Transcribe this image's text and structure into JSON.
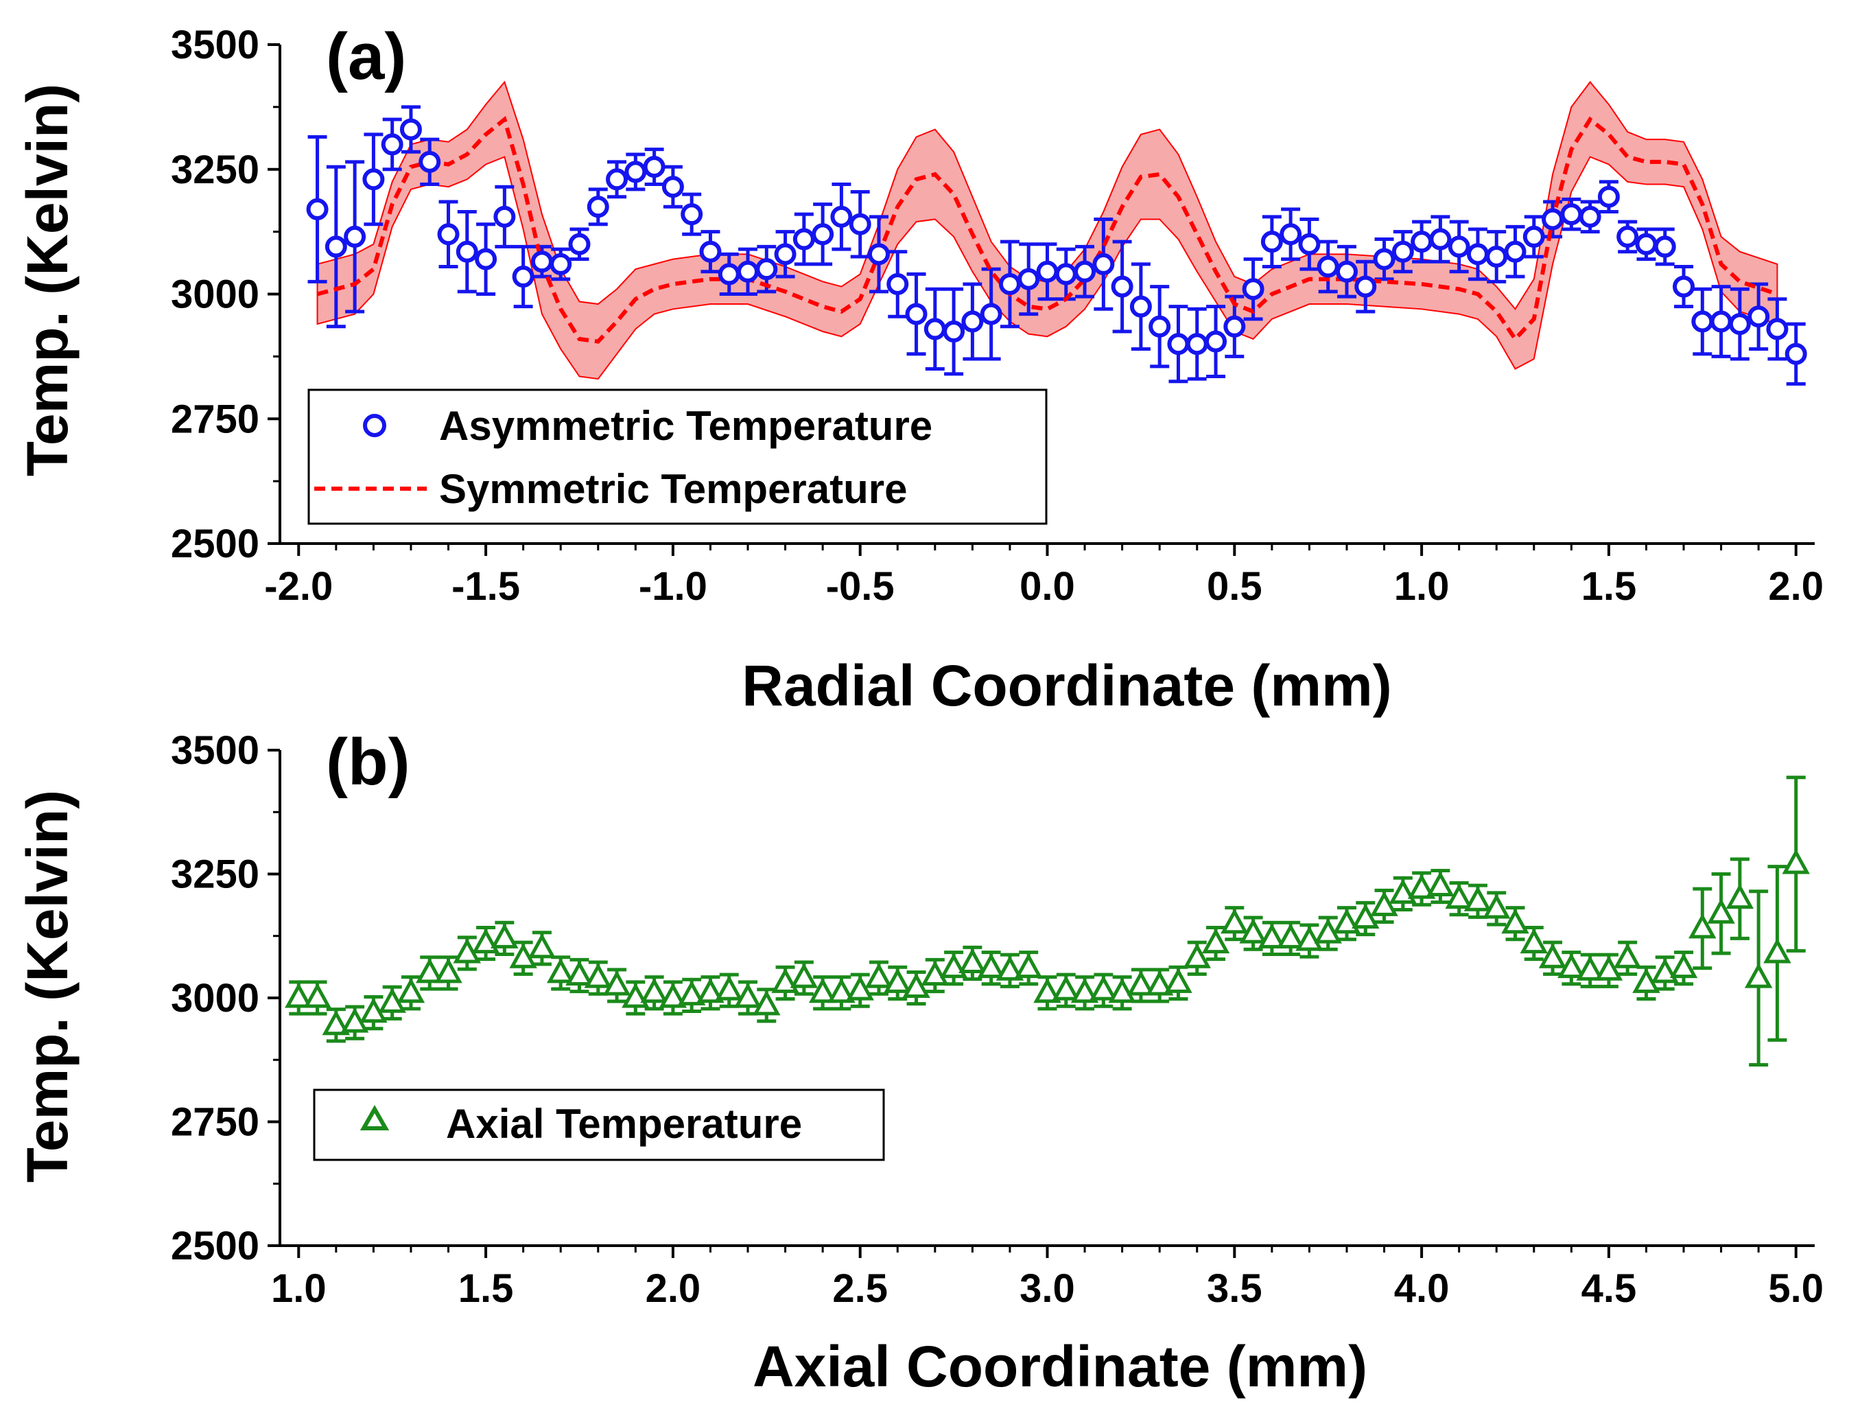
{
  "chart_data": [
    {
      "panel": "a",
      "type": "scatter",
      "panel_label": "(a)",
      "xlabel": "Radial Coordinate (mm)",
      "ylabel": "Temp. (Kelvin)",
      "xlim": [
        -2.05,
        2.05
      ],
      "ylim": [
        2500,
        3500
      ],
      "xticks": [
        "-2.0",
        "-1.5",
        "-1.0",
        "-0.5",
        "0.0",
        "0.5",
        "1.0",
        "1.5",
        "2.0"
      ],
      "yticks": [
        "2500",
        "2750",
        "3000",
        "3250",
        "3500"
      ],
      "legend_position": "bottom-left",
      "series": [
        {
          "name": "Asymmetric Temperature",
          "marker": "open-circle",
          "color": "#1515ee",
          "x": [
            -1.95,
            -1.9,
            -1.85,
            -1.8,
            -1.75,
            -1.7,
            -1.65,
            -1.6,
            -1.55,
            -1.5,
            -1.45,
            -1.4,
            -1.35,
            -1.3,
            -1.25,
            -1.2,
            -1.15,
            -1.1,
            -1.05,
            -1.0,
            -0.95,
            -0.9,
            -0.85,
            -0.8,
            -0.75,
            -0.7,
            -0.65,
            -0.6,
            -0.55,
            -0.5,
            -0.45,
            -0.4,
            -0.35,
            -0.3,
            -0.25,
            -0.2,
            -0.15,
            -0.1,
            -0.05,
            0.0,
            0.05,
            0.1,
            0.15,
            0.2,
            0.25,
            0.3,
            0.35,
            0.4,
            0.45,
            0.5,
            0.55,
            0.6,
            0.65,
            0.7,
            0.75,
            0.8,
            0.85,
            0.9,
            0.95,
            1.0,
            1.05,
            1.1,
            1.15,
            1.2,
            1.25,
            1.3,
            1.35,
            1.4,
            1.45,
            1.5,
            1.55,
            1.6,
            1.65,
            1.7,
            1.75,
            1.8,
            1.85,
            1.9,
            1.95,
            2.0
          ],
          "y": [
            3170,
            3095,
            3115,
            3230,
            3300,
            3330,
            3265,
            3120,
            3085,
            3070,
            3155,
            3035,
            3065,
            3060,
            3100,
            3175,
            3230,
            3245,
            3255,
            3215,
            3160,
            3085,
            3040,
            3045,
            3050,
            3080,
            3110,
            3120,
            3155,
            3140,
            3080,
            3020,
            2960,
            2930,
            2925,
            2945,
            2960,
            3020,
            3030,
            3045,
            3040,
            3045,
            3060,
            3015,
            2975,
            2935,
            2900,
            2900,
            2905,
            2935,
            3010,
            3105,
            3120,
            3100,
            3055,
            3045,
            3015,
            3070,
            3085,
            3105,
            3110,
            3095,
            3080,
            3075,
            3085,
            3115,
            3150,
            3160,
            3155,
            3195,
            3115,
            3100,
            3095,
            3015,
            2945,
            2945,
            2940,
            2955,
            2930,
            2880
          ],
          "err": [
            145,
            160,
            150,
            90,
            50,
            45,
            45,
            65,
            80,
            70,
            60,
            60,
            30,
            30,
            30,
            35,
            35,
            35,
            35,
            40,
            40,
            40,
            40,
            45,
            45,
            45,
            50,
            60,
            65,
            65,
            75,
            65,
            80,
            80,
            85,
            75,
            90,
            85,
            70,
            55,
            50,
            50,
            90,
            90,
            85,
            80,
            75,
            70,
            70,
            60,
            60,
            50,
            50,
            50,
            50,
            50,
            50,
            40,
            40,
            40,
            45,
            50,
            50,
            50,
            50,
            40,
            35,
            30,
            30,
            30,
            30,
            30,
            35,
            40,
            65,
            70,
            70,
            65,
            60,
            60
          ]
        },
        {
          "name": "Symmetric Temperature",
          "line_style": "dashed",
          "color": "#ff0000",
          "band_color": "#f59b9b",
          "x": [
            -1.95,
            -1.85,
            -1.8,
            -1.75,
            -1.7,
            -1.65,
            -1.6,
            -1.55,
            -1.5,
            -1.45,
            -1.4,
            -1.35,
            -1.3,
            -1.25,
            -1.2,
            -1.15,
            -1.1,
            -1.05,
            -1.0,
            -0.9,
            -0.8,
            -0.7,
            -0.6,
            -0.55,
            -0.5,
            -0.45,
            -0.4,
            -0.35,
            -0.3,
            -0.25,
            -0.2,
            -0.15,
            -0.1,
            -0.05,
            0.0,
            0.05,
            0.1,
            0.15,
            0.2,
            0.25,
            0.3,
            0.35,
            0.4,
            0.45,
            0.5,
            0.55,
            0.6,
            0.7,
            0.8,
            0.9,
            1.0,
            1.1,
            1.15,
            1.2,
            1.25,
            1.3,
            1.35,
            1.4,
            1.45,
            1.5,
            1.55,
            1.6,
            1.65,
            1.7,
            1.75,
            1.8,
            1.85,
            1.95
          ],
          "y": [
            3000,
            3020,
            3050,
            3180,
            3255,
            3265,
            3260,
            3280,
            3320,
            3350,
            3220,
            3060,
            2970,
            2910,
            2905,
            2945,
            2990,
            3010,
            3020,
            3030,
            3030,
            3005,
            2975,
            2965,
            2990,
            3080,
            3175,
            3230,
            3240,
            3200,
            3120,
            3045,
            3000,
            2975,
            2970,
            2990,
            3030,
            3095,
            3175,
            3235,
            3240,
            3195,
            3120,
            3045,
            2980,
            2965,
            3000,
            3030,
            3030,
            3025,
            3020,
            3010,
            3000,
            2965,
            2910,
            2950,
            3150,
            3290,
            3350,
            3320,
            3275,
            3265,
            3265,
            3260,
            3180,
            3060,
            3025,
            3000
          ],
          "band": [
            60,
            60,
            50,
            45,
            45,
            45,
            45,
            50,
            60,
            75,
            90,
            100,
            80,
            75,
            75,
            65,
            60,
            50,
            50,
            50,
            50,
            50,
            50,
            50,
            50,
            60,
            75,
            85,
            90,
            85,
            75,
            60,
            55,
            55,
            55,
            55,
            60,
            70,
            80,
            85,
            90,
            85,
            75,
            60,
            55,
            55,
            50,
            50,
            50,
            50,
            50,
            50,
            50,
            50,
            60,
            80,
            90,
            85,
            75,
            60,
            50,
            45,
            45,
            45,
            50,
            55,
            60,
            60
          ]
        }
      ]
    },
    {
      "panel": "b",
      "type": "scatter",
      "panel_label": "(b)",
      "xlabel": "Axial Coordinate (mm)",
      "ylabel": "Temp. (Kelvin)",
      "xlim": [
        0.95,
        5.05
      ],
      "ylim": [
        2500,
        3500
      ],
      "xticks": [
        "1.0",
        "1.5",
        "2.0",
        "2.5",
        "3.0",
        "3.5",
        "4.0",
        "4.5",
        "5.0"
      ],
      "yticks": [
        "2500",
        "2750",
        "3000",
        "3250",
        "3500"
      ],
      "legend_position": "bottom-left",
      "series": [
        {
          "name": "Axial Temperature",
          "marker": "open-triangle",
          "color": "#1a8a1a",
          "x": [
            1.0,
            1.05,
            1.1,
            1.15,
            1.2,
            1.25,
            1.3,
            1.35,
            1.4,
            1.45,
            1.5,
            1.55,
            1.6,
            1.65,
            1.7,
            1.75,
            1.8,
            1.85,
            1.9,
            1.95,
            2.0,
            2.05,
            2.1,
            2.15,
            2.2,
            2.25,
            2.3,
            2.35,
            2.4,
            2.45,
            2.5,
            2.55,
            2.6,
            2.65,
            2.7,
            2.75,
            2.8,
            2.85,
            2.9,
            2.95,
            3.0,
            3.05,
            3.1,
            3.15,
            3.2,
            3.25,
            3.3,
            3.35,
            3.4,
            3.45,
            3.5,
            3.55,
            3.6,
            3.65,
            3.7,
            3.75,
            3.8,
            3.85,
            3.9,
            3.95,
            4.0,
            4.05,
            4.1,
            4.15,
            4.2,
            4.25,
            4.3,
            4.35,
            4.4,
            4.45,
            4.5,
            4.55,
            4.6,
            4.65,
            4.7,
            4.75,
            4.8,
            4.85,
            4.9,
            4.95,
            5.0
          ],
          "y": [
            3000,
            3000,
            2945,
            2950,
            2970,
            2990,
            3010,
            3050,
            3050,
            3090,
            3110,
            3120,
            3080,
            3100,
            3050,
            3045,
            3040,
            3025,
            3000,
            3010,
            3000,
            3005,
            3010,
            3015,
            3000,
            2985,
            3030,
            3040,
            3010,
            3010,
            3015,
            3040,
            3030,
            3020,
            3045,
            3060,
            3070,
            3060,
            3055,
            3060,
            3010,
            3015,
            3010,
            3015,
            3010,
            3025,
            3025,
            3030,
            3080,
            3110,
            3150,
            3130,
            3120,
            3120,
            3115,
            3130,
            3150,
            3160,
            3185,
            3210,
            3220,
            3225,
            3200,
            3195,
            3180,
            3150,
            3110,
            3080,
            3060,
            3055,
            3055,
            3080,
            3030,
            3050,
            3060,
            3140,
            3170,
            3200,
            3040,
            3090,
            3270
          ]
        }
      ]
    }
  ],
  "legends": {
    "a": [
      {
        "label": "Asymmetric Temperature"
      },
      {
        "label": "Symmetric Temperature"
      }
    ],
    "b": [
      {
        "label": "Axial Temperature"
      }
    ]
  }
}
